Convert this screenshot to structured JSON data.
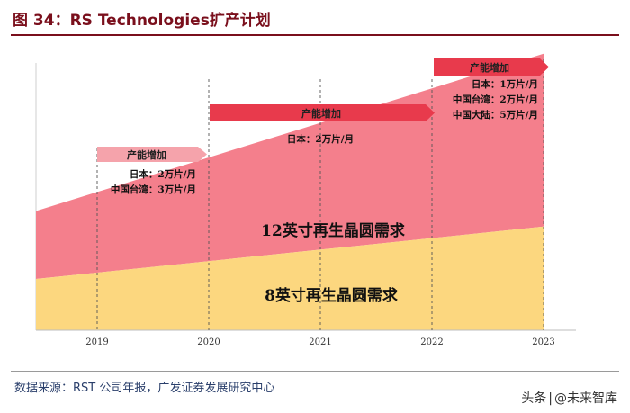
{
  "figure": {
    "title": "图 34：RS Technologies扩产计划",
    "source": "数据来源：RST 公司年报，广发证券发展研究中心",
    "watermark_prefix": "头条",
    "watermark_handle": "@未来智库"
  },
  "colors": {
    "title": "#7a0f1c",
    "area_12": "#f47f8c",
    "area_8": "#fcd77f",
    "banner_2019": "#f5a3ab",
    "banner": "#e83a4c",
    "source_text": "#2a3f6b"
  },
  "chart_data": {
    "type": "area",
    "title": "RS Technologies扩产计划",
    "x": [
      2019,
      2020,
      2021,
      2022,
      2023
    ],
    "x_ticks": [
      "2019",
      "2020",
      "2021",
      "2022",
      "2023"
    ],
    "ylim": [
      0,
      100
    ],
    "series": [
      {
        "name": "8吋再生晶圓需求",
        "label": "8英寸再生晶圆需求",
        "values": [
          20,
          24,
          28,
          32,
          36
        ]
      },
      {
        "name": "12吋再生晶圓需求",
        "label": "12英寸再生晶圆需求",
        "values": [
          48,
          60,
          72,
          84,
          96
        ]
      }
    ],
    "annotations": [
      {
        "period": "2019-2020",
        "heading": "产能增加",
        "lines": [
          "日本：2万片/月",
          "中国台湾：3万片/月"
        ]
      },
      {
        "period": "2020-2022",
        "heading": "产能增加",
        "lines": [
          "日本：2万片/月"
        ]
      },
      {
        "period": "2022-2023",
        "heading": "产能增加",
        "lines": [
          "日本：1万片/月",
          "中国台湾：2万片/月",
          "中国大陆：5万片/月"
        ]
      }
    ]
  }
}
